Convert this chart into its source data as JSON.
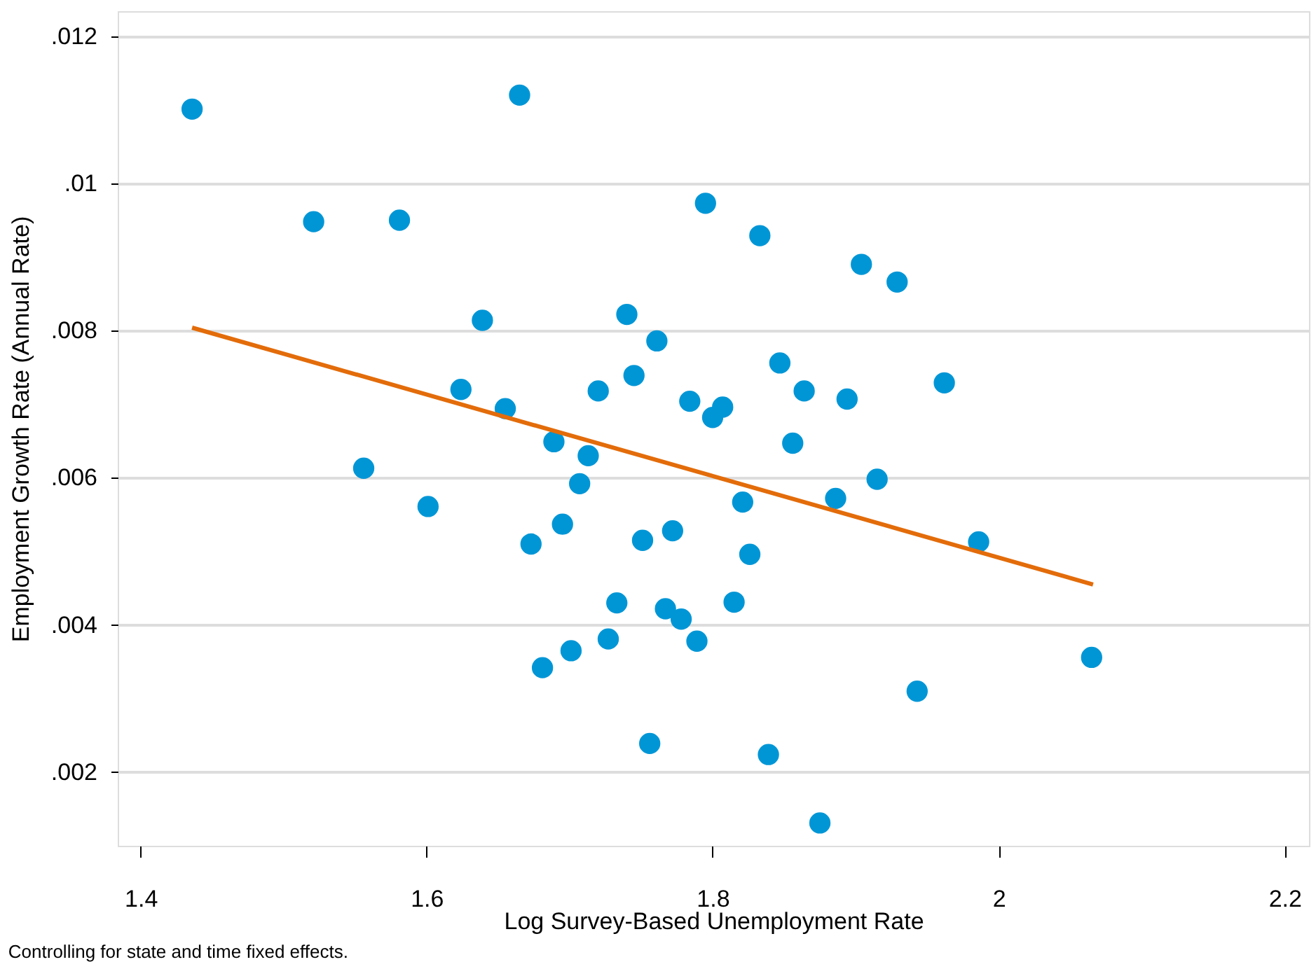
{
  "chart_data": {
    "type": "scatter",
    "xlabel": "Log Survey-Based Unemployment Rate",
    "ylabel": "Employment Growth Rate (Annual Rate)",
    "annotations": [
      "Controlling for state and time fixed effects."
    ],
    "xlim": [
      1.384,
      2.217
    ],
    "ylim": [
      0.001,
      0.01234
    ],
    "xticks": [
      1.4,
      1.6,
      1.8,
      {
        "value": 2.0,
        "label": "2"
      },
      2.2
    ],
    "yticks": [
      {
        "value": 0.002,
        "label": ".002"
      },
      {
        "value": 0.004,
        "label": ".004"
      },
      {
        "value": 0.006,
        "label": ".006"
      },
      {
        "value": 0.008,
        "label": ".008"
      },
      {
        "value": 0.01,
        "label": ".01"
      },
      {
        "value": 0.012,
        "label": ".012"
      }
    ],
    "grid": "y",
    "series": [
      {
        "marker": "circle",
        "color": "#0096d6",
        "x": [
          1.436,
          1.665,
          1.521,
          1.581,
          1.795,
          1.833,
          1.904,
          1.929,
          1.639,
          1.74,
          1.761,
          1.847,
          1.624,
          1.72,
          1.745,
          1.784,
          1.8,
          1.807,
          1.864,
          1.894,
          1.962,
          1.655,
          1.689,
          1.713,
          1.856,
          1.556,
          1.601,
          1.707,
          1.695,
          1.673,
          1.751,
          1.772,
          1.915,
          1.886,
          1.821,
          1.986,
          1.826,
          1.815,
          1.733,
          1.767,
          1.778,
          1.789,
          1.727,
          1.701,
          1.681,
          2.065,
          1.943,
          1.756,
          1.839,
          1.875
        ],
        "values": [
          0.01101,
          0.0112,
          0.00948,
          0.0095,
          0.00973,
          0.00929,
          0.0089,
          0.00866,
          0.00814,
          0.00822,
          0.00786,
          0.00756,
          0.0072,
          0.00718,
          0.00739,
          0.00704,
          0.00682,
          0.00696,
          0.00718,
          0.00707,
          0.00729,
          0.00694,
          0.00649,
          0.0063,
          0.00647,
          0.00613,
          0.00561,
          0.00592,
          0.00537,
          0.0051,
          0.00515,
          0.00528,
          0.00598,
          0.00572,
          0.00567,
          0.00513,
          0.00496,
          0.00431,
          0.0043,
          0.00422,
          0.00408,
          0.00378,
          0.00381,
          0.00365,
          0.00342,
          0.00356,
          0.0031,
          0.00239,
          0.00224,
          0.00131
        ]
      },
      {
        "type": "line",
        "color": "#e36c0a",
        "line_style": "solid",
        "x": [
          1.436,
          2.066
        ],
        "values": [
          0.00804,
          0.00455
        ]
      }
    ]
  }
}
